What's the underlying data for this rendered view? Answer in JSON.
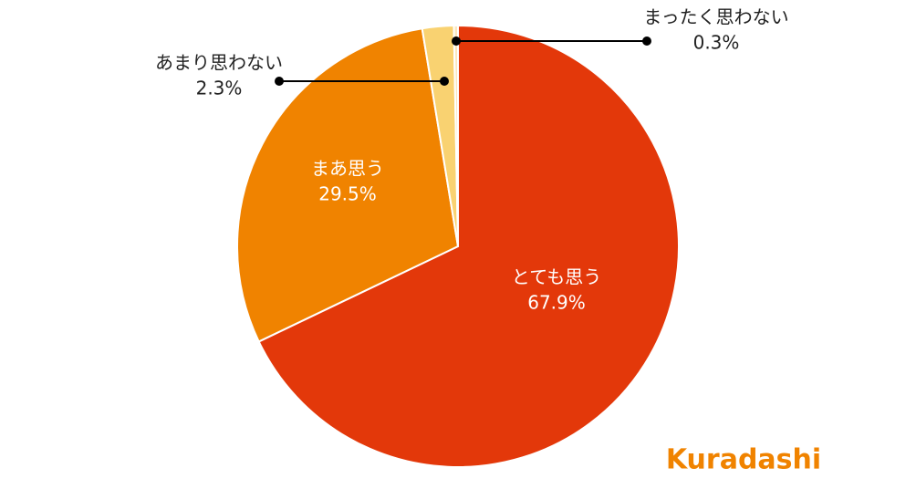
{
  "chart_data": {
    "type": "pie",
    "categories": [
      "とても思う",
      "まあ思う",
      "あまり思わない",
      "まったく思わない"
    ],
    "values": [
      67.9,
      29.5,
      2.3,
      0.3
    ],
    "value_labels": [
      "67.9%",
      "29.5%",
      "2.3%",
      "0.3%"
    ],
    "colors": [
      "#e3380a",
      "#f08300",
      "#f9d271",
      "#fbe7bd"
    ]
  },
  "logo": "Kuradashi"
}
